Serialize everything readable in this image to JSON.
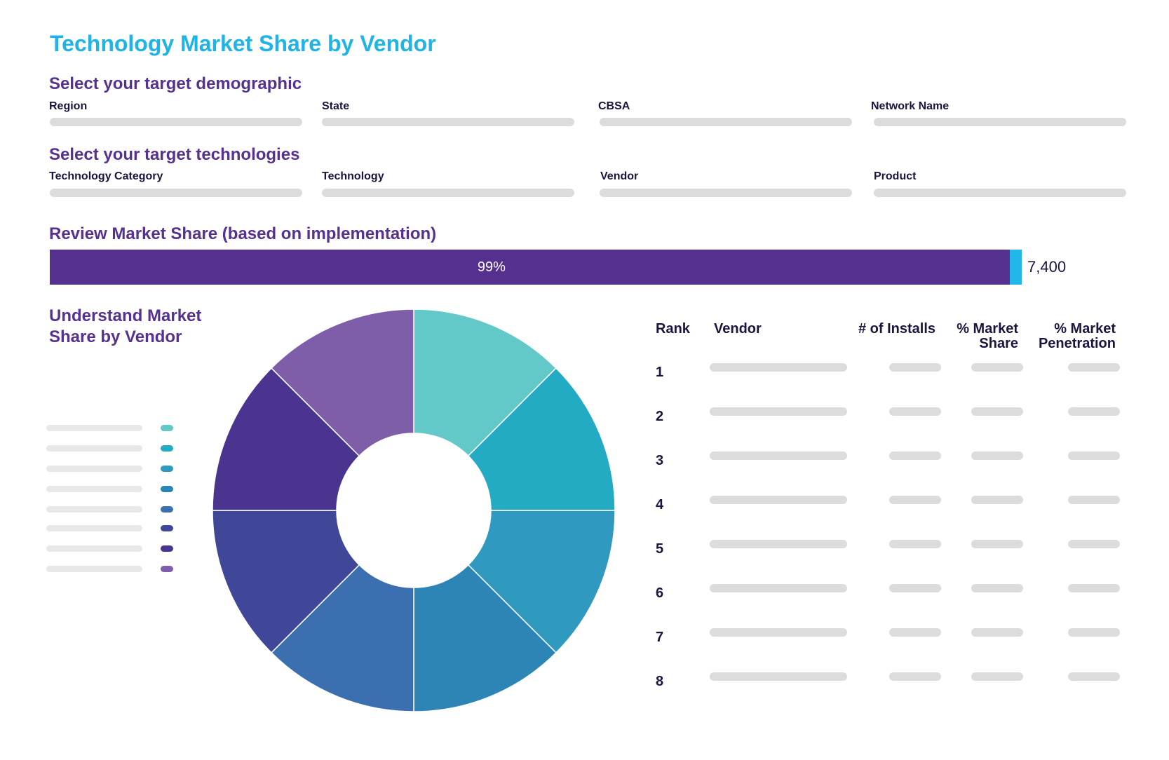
{
  "page_title": "Technology Market Share by Vendor",
  "demographic": {
    "heading": "Select your target demographic",
    "fields": [
      {
        "label": "Region"
      },
      {
        "label": "State"
      },
      {
        "label": "CBSA"
      },
      {
        "label": "Network Name"
      }
    ]
  },
  "technologies": {
    "heading": "Select your target technologies",
    "fields": [
      {
        "label": "Technology Category"
      },
      {
        "label": "Technology"
      },
      {
        "label": "Vendor"
      },
      {
        "label": "Product"
      }
    ]
  },
  "market_share": {
    "heading": "Review Market Share (based on implementation)",
    "percent_label": "99%",
    "fill_fraction": 0.988,
    "count": "7,400",
    "colors": {
      "main": "#55308f",
      "rest": "#22b7ea"
    }
  },
  "vendor_chart": {
    "heading_line1": "Understand Market",
    "heading_line2": "Share by Vendor",
    "slice_colors": [
      "#62c8c8",
      "#22abc3",
      "#2f99bf",
      "#2d85b6",
      "#3b6fb0",
      "#404799",
      "#4a348f",
      "#7e5ea9"
    ],
    "slice_values": [
      1,
      1,
      1,
      1,
      1,
      1,
      1,
      1
    ]
  },
  "table": {
    "headers": {
      "rank": "Rank",
      "vendor": "Vendor",
      "installs": "# of Installs",
      "share_line1": "% Market",
      "share_line2": "Share",
      "penetration_line1": "% Market",
      "penetration_line2": "Penetration"
    },
    "ranks": [
      "1",
      "2",
      "3",
      "4",
      "5",
      "6",
      "7",
      "8"
    ]
  }
}
